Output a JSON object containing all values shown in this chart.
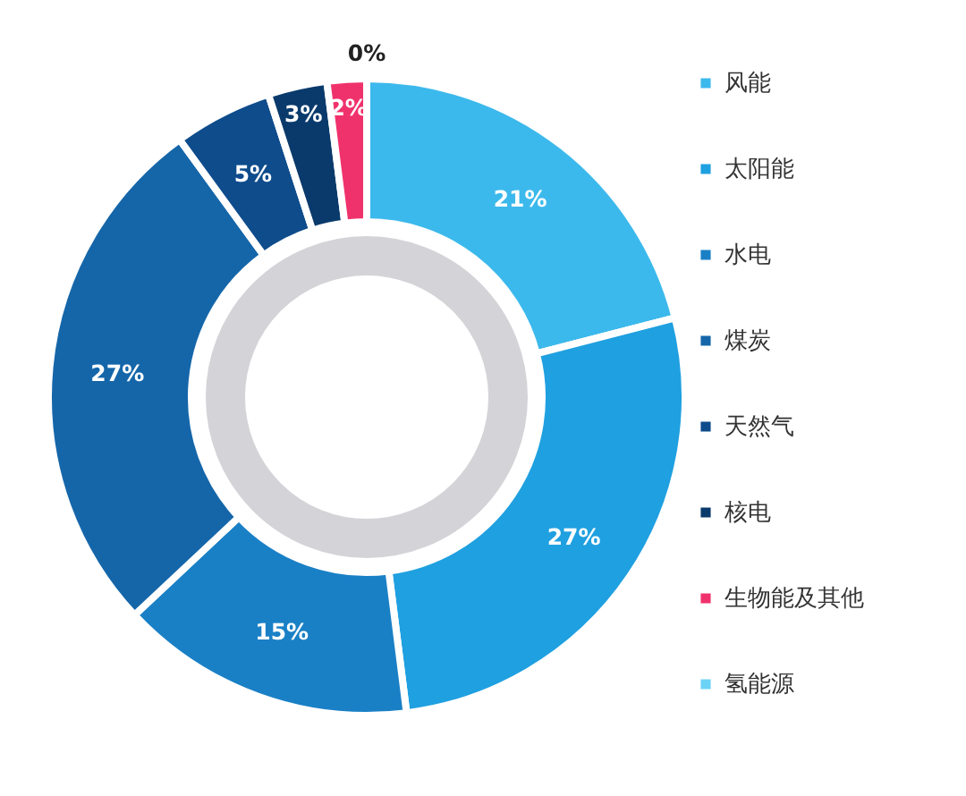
{
  "chart_data": {
    "type": "donut",
    "categories": [
      "风能",
      "太阳能",
      "水电",
      "煤炭",
      "天然气",
      "核电",
      "生物能及其他",
      "氢能源"
    ],
    "values": [
      21,
      27,
      15,
      27,
      5,
      3,
      2,
      0
    ],
    "value_labels": [
      "21%",
      "27%",
      "15%",
      "27%",
      "5%",
      "3%",
      "2%",
      "0%"
    ],
    "colors": [
      "#3cb9ec",
      "#1fa0e0",
      "#1a80c6",
      "#1566a9",
      "#0e4c8c",
      "#0a3a6c",
      "#f0326c",
      "#6cd2f6"
    ],
    "legend": "right"
  }
}
